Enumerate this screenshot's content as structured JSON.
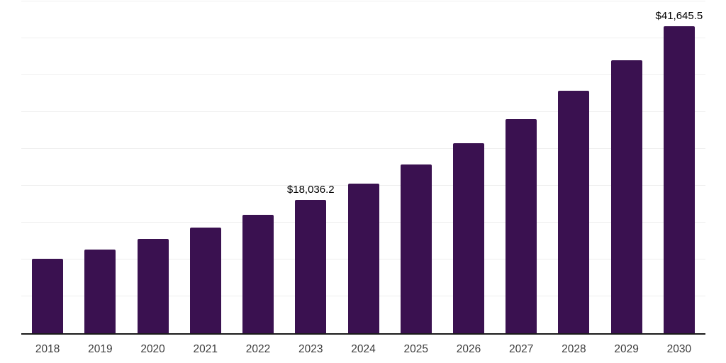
{
  "chart_data": {
    "type": "bar",
    "title": "",
    "xlabel": "",
    "ylabel": "",
    "categories": [
      "2018",
      "2019",
      "2020",
      "2021",
      "2022",
      "2023",
      "2024",
      "2025",
      "2026",
      "2027",
      "2028",
      "2029",
      "2030"
    ],
    "values": [
      10100,
      11350,
      12800,
      14330,
      16060,
      18036.2,
      20290,
      22840,
      25770,
      29040,
      32880,
      37020,
      41645.5
    ],
    "data_labels": {
      "2023": "$18,036.2",
      "2030": "$41,645.5"
    },
    "ylim": [
      0,
      45000
    ],
    "gridline_step": 5000,
    "grid": "horizontal",
    "y_tick_labels_visible": false,
    "legend_position": "none",
    "colors": {
      "bar": "#3a1150",
      "gridline": "#efefef",
      "axis_line": "#1a1a1a",
      "data_label": "#000000",
      "tick_label": "#3d3d3d",
      "background": "#ffffff"
    }
  }
}
